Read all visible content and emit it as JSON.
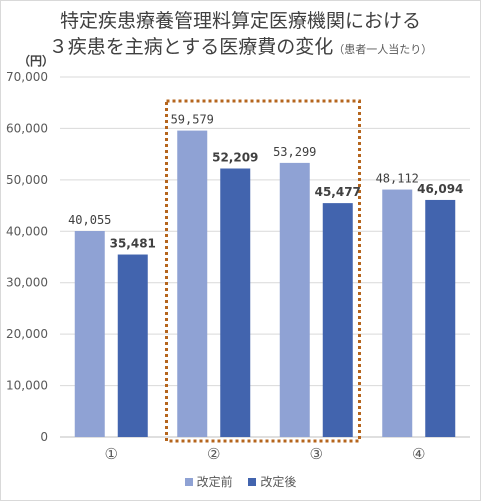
{
  "chart_data": {
    "type": "bar",
    "title_line1": "特定疾患療養管理料算定医療機関における",
    "title_line2": "３疾患を主病とする医療費の変化",
    "title_note": "（患者一人当たり）",
    "unit": "（円）",
    "categories": [
      "①",
      "②",
      "③",
      "④"
    ],
    "ylim": [
      0,
      70000
    ],
    "yticks": [
      "0",
      "10,000",
      "20,000",
      "30,000",
      "40,000",
      "50,000",
      "60,000",
      "70,000"
    ],
    "grid": true,
    "legend_position": "bottom",
    "series": [
      {
        "name": "改定前",
        "color": "#8fa2d4",
        "values": [
          40055,
          59579,
          53299,
          48112
        ],
        "labels": [
          "40,055",
          "59,579",
          "53,299",
          "48,112"
        ]
      },
      {
        "name": "改定後",
        "color": "#4264ae",
        "values": [
          35481,
          52209,
          45477,
          46094
        ],
        "labels": [
          "35,481",
          "52,209",
          "45,477",
          "46,094"
        ]
      }
    ],
    "highlight": {
      "categories": [
        "②",
        "③"
      ],
      "color": "#b5651d",
      "style": "dotted"
    }
  }
}
